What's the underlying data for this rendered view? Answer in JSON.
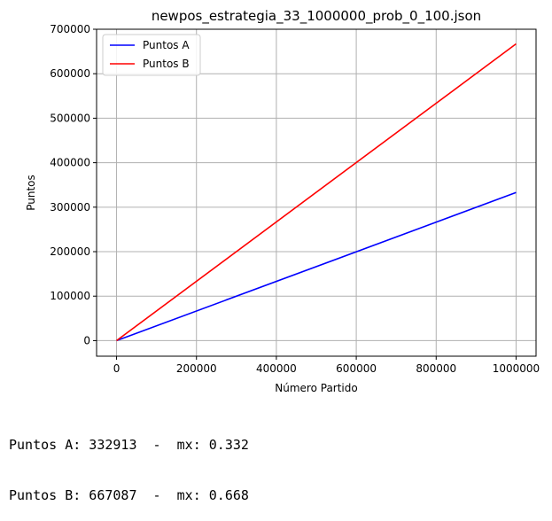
{
  "chart_data": {
    "type": "line",
    "title": "newpos_estrategia_33_1000000_prob_0_100.json",
    "xlabel": "Número Partido",
    "ylabel": "Puntos",
    "xlim": [
      -50000,
      1050000
    ],
    "ylim": [
      -35000,
      700000
    ],
    "xticks": [
      0,
      200000,
      400000,
      600000,
      800000,
      1000000
    ],
    "yticks": [
      0,
      100000,
      200000,
      300000,
      400000,
      500000,
      600000,
      700000
    ],
    "grid": true,
    "legend_position": "top-left",
    "series": [
      {
        "name": "Puntos A",
        "color": "#0000ff",
        "x": [
          0,
          1000000
        ],
        "y": [
          0,
          332913
        ]
      },
      {
        "name": "Puntos B",
        "color": "#ff0000",
        "x": [
          0,
          1000000
        ],
        "y": [
          0,
          667087
        ]
      }
    ]
  },
  "stats": {
    "line_a": "Puntos A: 332913  -  mx: 0.332",
    "line_b": "Puntos B: 667087  -  mx: 0.668"
  }
}
